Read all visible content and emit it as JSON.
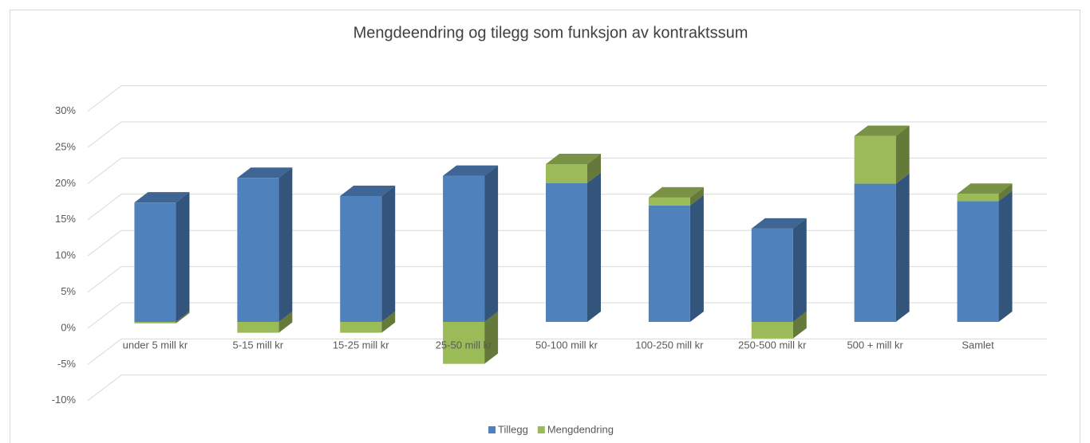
{
  "chart_data": {
    "type": "bar3d_stacked",
    "title": "Mengdeendring og tilegg som funksjon av kontraktssum",
    "categories": [
      "under 5 mill kr",
      "5-15 mill kr",
      "15-25 mill kr",
      "25-50 mill kr",
      "50-100 mill kr",
      "100-250 mill kr",
      "250-500 mill kr",
      "500 + mill kr",
      "Samlet"
    ],
    "series": [
      {
        "name": "Tillegg",
        "color": "#4f81bd",
        "values": [
          16.5,
          19.9,
          17.4,
          20.2,
          19.2,
          16.1,
          12.9,
          19.1,
          16.7
        ]
      },
      {
        "name": "Mengdendring",
        "color": "#9bbb59",
        "values": [
          -0.2,
          -1.5,
          -1.5,
          -5.8,
          2.6,
          1.1,
          -2.3,
          6.6,
          1.0
        ]
      }
    ],
    "ylim": [
      -10,
      30
    ],
    "yticks": [
      {
        "value": -10,
        "label": "-10%"
      },
      {
        "value": -5,
        "label": "-5%"
      },
      {
        "value": 0,
        "label": "0%"
      },
      {
        "value": 5,
        "label": "5%"
      },
      {
        "value": 10,
        "label": "10%"
      },
      {
        "value": 15,
        "label": "15%"
      },
      {
        "value": 20,
        "label": "20%"
      },
      {
        "value": 25,
        "label": "25%"
      },
      {
        "value": 30,
        "label": "30%"
      }
    ],
    "grid": true,
    "legend": "bottom"
  }
}
